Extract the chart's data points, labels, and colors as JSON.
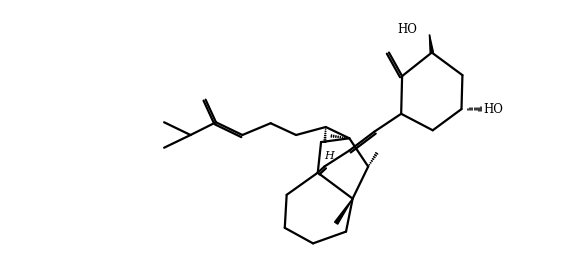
{
  "background": "#ffffff",
  "bond_color": "#000000",
  "lw": 1.6,
  "figsize": [
    5.62,
    2.7
  ],
  "dpi": 100,
  "label_HO_top": "HO",
  "label_HO_right": "HO",
  "label_H": "H",
  "font_size": 8.5,
  "xlim": [
    0.0,
    10.2
  ],
  "ylim": [
    -0.5,
    5.2
  ]
}
